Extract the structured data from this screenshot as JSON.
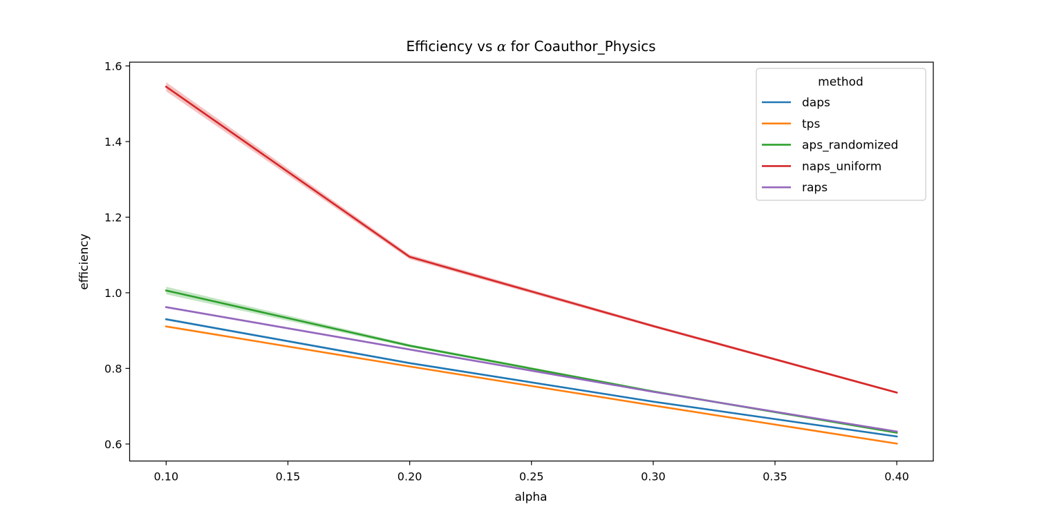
{
  "chart_data": {
    "type": "line",
    "title_prefix": "Efficiency vs ",
    "title_symbol": "α",
    "title_suffix": " for Coauthor_Physics",
    "xlabel": "alpha",
    "ylabel": "efficiency",
    "xlim": [
      0.085,
      0.415
    ],
    "ylim": [
      0.555,
      1.61
    ],
    "xticks": [
      0.1,
      0.15,
      0.2,
      0.25,
      0.3,
      0.35,
      0.4
    ],
    "xtick_labels": [
      "0.10",
      "0.15",
      "0.20",
      "0.25",
      "0.30",
      "0.35",
      "0.40"
    ],
    "yticks": [
      0.6,
      0.8,
      1.0,
      1.2,
      1.4,
      1.6
    ],
    "ytick_labels": [
      "0.6",
      "0.8",
      "1.0",
      "1.2",
      "1.4",
      "1.6"
    ],
    "grid": false,
    "legend": {
      "title": "method",
      "placement": "top-right"
    },
    "x": [
      0.1,
      0.2,
      0.3,
      0.4
    ],
    "series": [
      {
        "name": "daps",
        "color": "#1f77b4",
        "values": [
          0.93,
          0.814,
          0.712,
          0.62
        ],
        "ci": [
          0.003,
          0.003,
          0.002,
          0.002
        ]
      },
      {
        "name": "tps",
        "color": "#ff7f0e",
        "values": [
          0.911,
          0.805,
          0.702,
          0.601
        ],
        "ci": [
          0.002,
          0.002,
          0.002,
          0.002
        ]
      },
      {
        "name": "aps_randomized",
        "color": "#2ca02c",
        "values": [
          1.006,
          0.86,
          0.739,
          0.63
        ],
        "ci": [
          0.01,
          0.004,
          0.003,
          0.003
        ]
      },
      {
        "name": "naps_uniform",
        "color": "#d62728",
        "values": [
          1.545,
          1.095,
          0.912,
          0.736
        ],
        "ci": [
          0.012,
          0.006,
          0.004,
          0.003
        ]
      },
      {
        "name": "raps",
        "color": "#9467bd",
        "values": [
          0.962,
          0.85,
          0.738,
          0.633
        ],
        "ci": [
          0.003,
          0.003,
          0.002,
          0.002
        ]
      }
    ]
  }
}
